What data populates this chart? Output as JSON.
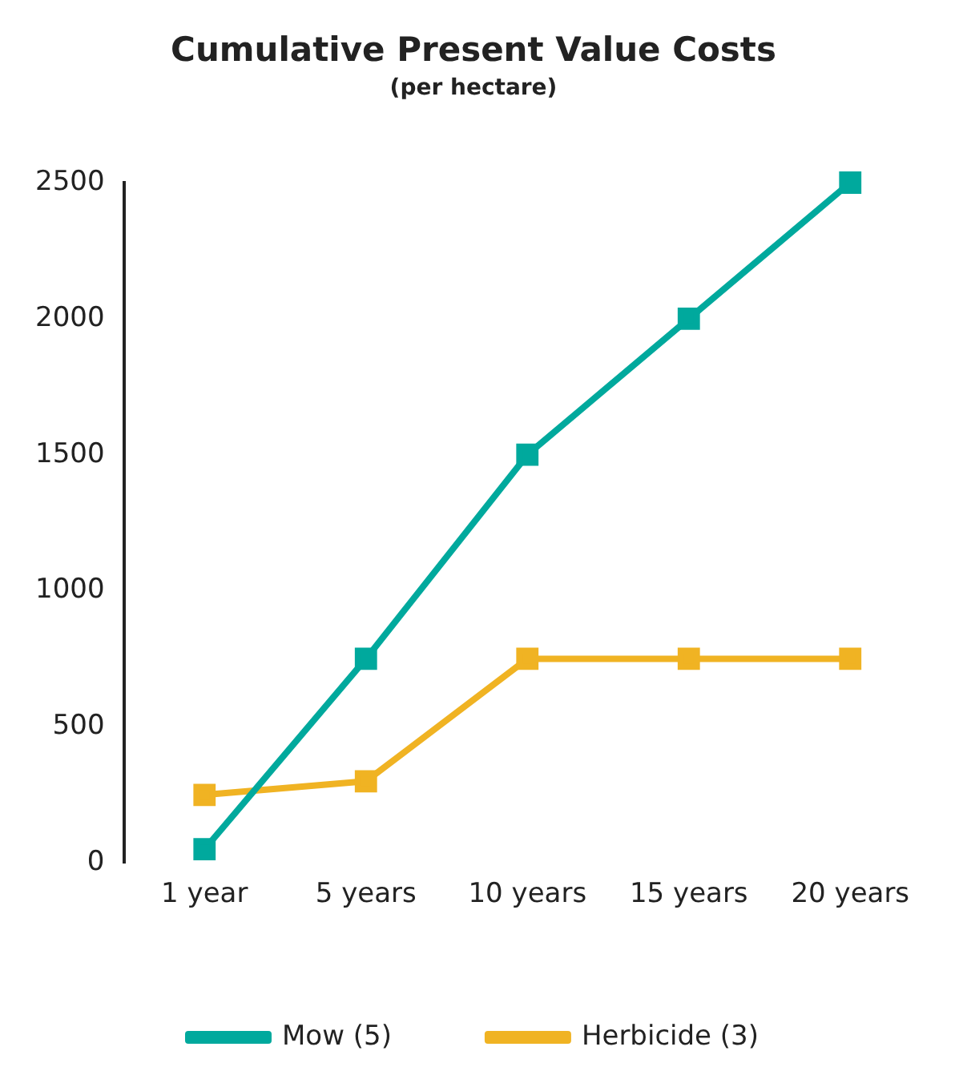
{
  "chart_data": {
    "type": "line",
    "title": "Cumulative Present Value Costs",
    "subtitle": "(per hectare)",
    "categories": [
      "1 year",
      "5 years",
      "10 years",
      "15 years",
      "20 years"
    ],
    "series": [
      {
        "name": "Mow (5)",
        "color": "#00a99d",
        "values": [
          50,
          750,
          1500,
          2000,
          2500
        ]
      },
      {
        "name": "Herbicide (3)",
        "color": "#f0b323",
        "values": [
          250,
          300,
          750,
          750,
          750
        ]
      }
    ],
    "ylim": [
      0,
      2500
    ],
    "yticks": [
      0,
      500,
      1000,
      1500,
      2000,
      2500
    ],
    "grid": false,
    "legend": "bottom",
    "marker": "square",
    "line_style": "solid"
  }
}
